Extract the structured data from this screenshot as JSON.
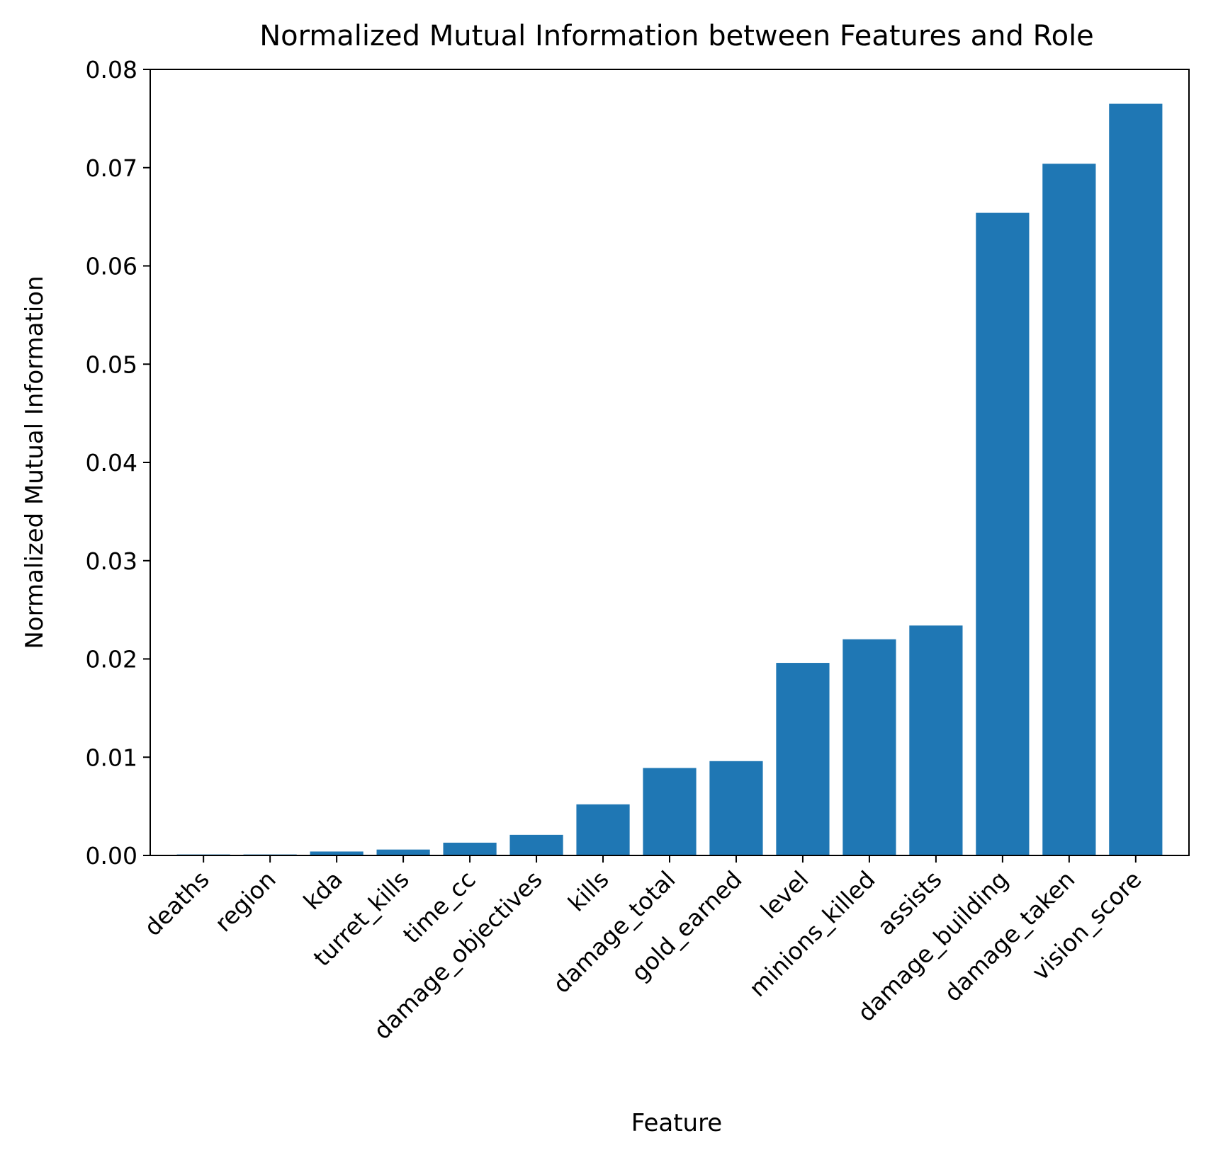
{
  "chart_data": {
    "type": "bar",
    "title": "Normalized Mutual Information between Features and Role",
    "xlabel": "Feature",
    "ylabel": "Normalized Mutual Information",
    "categories": [
      "deaths",
      "region",
      "kda",
      "turret_kills",
      "time_cc",
      "damage_objectives",
      "kills",
      "damage_total",
      "gold_earned",
      "level",
      "minions_killed",
      "assists",
      "damage_building",
      "damage_taken",
      "vision_score"
    ],
    "values": [
      0.0001,
      0.0001,
      0.0004,
      0.0006,
      0.0013,
      0.0021,
      0.0052,
      0.0089,
      0.0096,
      0.0196,
      0.022,
      0.0234,
      0.0654,
      0.0704,
      0.0765
    ],
    "ylim": [
      0,
      0.08
    ],
    "yticks": [
      "0.00",
      "0.01",
      "0.02",
      "0.03",
      "0.04",
      "0.05",
      "0.06",
      "0.07",
      "0.08"
    ],
    "bar_color": "#1f77b4",
    "grid": false,
    "legend": "none"
  }
}
